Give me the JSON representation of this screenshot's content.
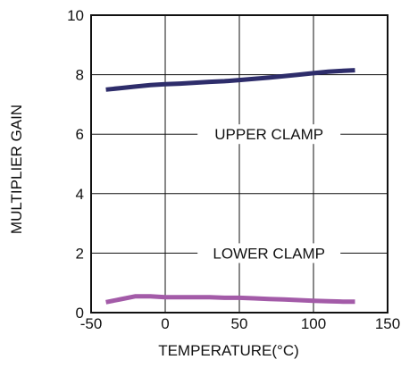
{
  "chart_data": {
    "type": "line",
    "title": "",
    "xlabel": "TEMPERATURE(°C)",
    "ylabel": "MULTIPLIER GAIN",
    "xlim": [
      -50,
      150
    ],
    "ylim": [
      0,
      10
    ],
    "x_ticks": [
      -50,
      0,
      50,
      100,
      150
    ],
    "y_ticks": [
      0,
      2,
      4,
      6,
      8,
      10
    ],
    "x_tick_labels": [
      "-50",
      "0",
      "50",
      "100",
      "150"
    ],
    "y_tick_labels": [
      "0",
      "2",
      "4",
      "6",
      "8",
      "10"
    ],
    "grid": true,
    "legend": "none",
    "series": [
      {
        "color": "#2e2d6b",
        "x": [
          -40,
          -30,
          -20,
          -10,
          0,
          10,
          20,
          30,
          40,
          50,
          60,
          70,
          80,
          90,
          100,
          110,
          120,
          128
        ],
        "y": [
          7.5,
          7.55,
          7.6,
          7.65,
          7.68,
          7.7,
          7.73,
          7.76,
          7.78,
          7.82,
          7.86,
          7.9,
          7.95,
          8.0,
          8.05,
          8.1,
          8.13,
          8.15
        ]
      },
      {
        "color": "#a35ba8",
        "x": [
          -40,
          -30,
          -20,
          -10,
          0,
          10,
          20,
          30,
          40,
          50,
          60,
          70,
          80,
          90,
          100,
          110,
          120,
          128
        ],
        "y": [
          0.35,
          0.45,
          0.55,
          0.55,
          0.52,
          0.52,
          0.52,
          0.52,
          0.5,
          0.5,
          0.48,
          0.46,
          0.44,
          0.42,
          0.4,
          0.38,
          0.37,
          0.37
        ]
      }
    ],
    "annotations": [
      {
        "text": "UPPER CLAMP",
        "x": 70,
        "y": 6.0
      },
      {
        "text": "LOWER CLAMP",
        "x": 70,
        "y": 2.0
      }
    ]
  }
}
